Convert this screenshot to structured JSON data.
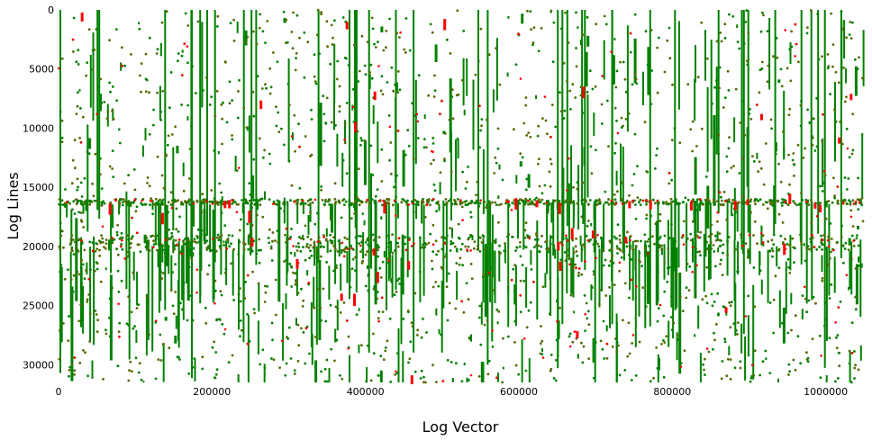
{
  "chart_data": {
    "type": "scatter",
    "title": "",
    "xlabel": "Log Vector",
    "ylabel": "Log Lines",
    "xlim": [
      0,
      1048576
    ],
    "ylim": [
      31500,
      0
    ],
    "y_inverted": true,
    "grid": false,
    "legend": "none",
    "x_ticks": [
      0,
      200000,
      400000,
      600000,
      800000,
      1000000
    ],
    "x_tick_labels": [
      "0",
      "200000",
      "400000",
      "600000",
      "800000",
      "1000000"
    ],
    "y_ticks": [
      0,
      5000,
      10000,
      15000,
      20000,
      25000,
      30000
    ],
    "y_tick_labels": [
      "0",
      "5000",
      "10000",
      "15000",
      "20000",
      "25000",
      "30000"
    ],
    "series": [
      {
        "color": "#008000",
        "values": "dense vertical streaks and points spanning full x range"
      },
      {
        "color": "#ff0000",
        "values": "sparse points overlapping the green series"
      }
    ],
    "dense_row_bands": [
      [
        0,
        13000
      ],
      [
        16000,
        16500
      ],
      [
        19000,
        20500
      ],
      [
        22000,
        31500
      ]
    ],
    "sparse_row_bands": [
      [
        13000,
        16000
      ],
      [
        16500,
        19000
      ],
      [
        20500,
        22000
      ]
    ]
  }
}
